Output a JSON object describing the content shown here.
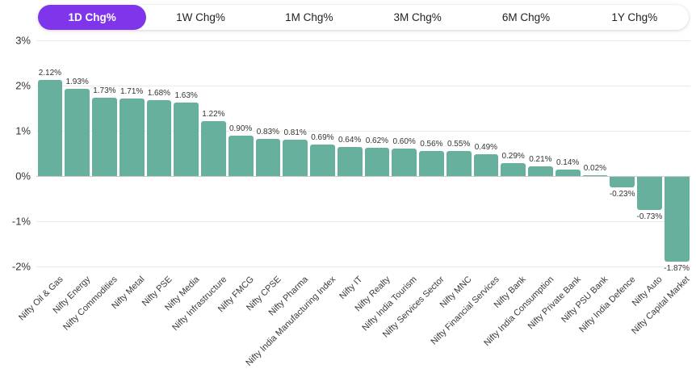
{
  "tabs": {
    "items": [
      {
        "label": "1D Chg%",
        "selected": true
      },
      {
        "label": "1W Chg%",
        "selected": false
      },
      {
        "label": "1M Chg%",
        "selected": false
      },
      {
        "label": "3M Chg%",
        "selected": false
      },
      {
        "label": "6M Chg%",
        "selected": false
      },
      {
        "label": "1Y Chg%",
        "selected": false
      }
    ]
  },
  "colors": {
    "tab_active_bg": "#7f35ea",
    "tab_active_text": "#ffffff",
    "bar": "#68b09e",
    "grid_line": "#eaeaea",
    "zero_line": "#c9c9c9"
  },
  "chart_data": {
    "type": "bar",
    "title": "",
    "xlabel": "",
    "ylabel": "",
    "legend": "none",
    "grid": "horizontal",
    "ylim": [
      -2,
      3
    ],
    "yticks": {
      "values": [
        3,
        2,
        1,
        0,
        -1,
        -2
      ],
      "labels": [
        "3%",
        "2%",
        "1%",
        "0%",
        "-1%",
        "-2%"
      ]
    },
    "bar_color": "#68b09e",
    "categories": [
      "Nifty Oil & Gas",
      "Nifty Energy",
      "Nifty Commodities",
      "Nifty Metal",
      "Nifty PSE",
      "Nifty Media",
      "Nifty Infrastructure",
      "Nifty FMCG",
      "Nifty CPSE",
      "Nifty Pharma",
      "Nifty India Manufacturing Index",
      "Nifty IT",
      "Nifty Realty",
      "Nifty India Tourism",
      "Nifty Services Sector",
      "Nifty MNC",
      "Nifty Financial Services",
      "Nifty Bank",
      "Nifty India Consumption",
      "Nifty Private Bank",
      "Nifty PSU Bank",
      "Nifty India Defence",
      "Nifty Auto",
      "Nifty Capital Market"
    ],
    "values": [
      2.12,
      1.93,
      1.73,
      1.71,
      1.68,
      1.63,
      1.22,
      0.9,
      0.83,
      0.81,
      0.69,
      0.64,
      0.62,
      0.6,
      0.56,
      0.55,
      0.49,
      0.29,
      0.21,
      0.14,
      0.02,
      -0.23,
      -0.73,
      -1.87
    ],
    "value_labels": [
      "2.12%",
      "1.93%",
      "1.73%",
      "1.71%",
      "1.68%",
      "1.63%",
      "1.22%",
      "0.90%",
      "0.83%",
      "0.81%",
      "0.69%",
      "0.64%",
      "0.62%",
      "0.60%",
      "0.56%",
      "0.55%",
      "0.49%",
      "0.29%",
      "0.21%",
      "0.14%",
      "0.02%",
      "-0.23%",
      "-0.73%",
      "-1.87%"
    ]
  }
}
